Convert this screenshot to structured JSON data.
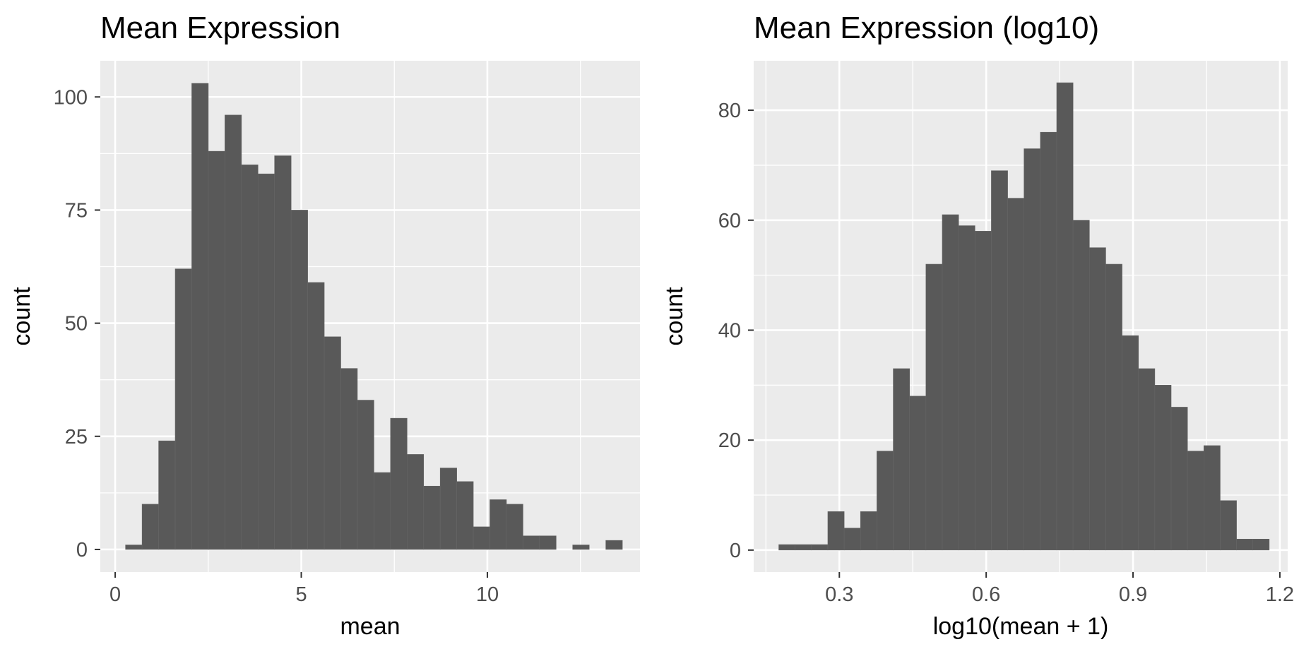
{
  "chart_data": [
    {
      "type": "bar",
      "title": "Mean Expression",
      "xlabel": "mean",
      "ylabel": "count",
      "xlim": [
        -0.4,
        14.1
      ],
      "ylim": [
        -5,
        108
      ],
      "x_ticks": [
        0,
        5,
        10
      ],
      "y_ticks": [
        0,
        25,
        50,
        75,
        100
      ],
      "grid": true,
      "bin_width": 0.445,
      "bins": [
        {
          "x": 0.5,
          "count": 1
        },
        {
          "x": 0.945,
          "count": 10
        },
        {
          "x": 1.39,
          "count": 24
        },
        {
          "x": 1.835,
          "count": 62
        },
        {
          "x": 2.28,
          "count": 103
        },
        {
          "x": 2.725,
          "count": 88
        },
        {
          "x": 3.17,
          "count": 96
        },
        {
          "x": 3.615,
          "count": 85
        },
        {
          "x": 4.06,
          "count": 83
        },
        {
          "x": 4.505,
          "count": 87
        },
        {
          "x": 4.95,
          "count": 75
        },
        {
          "x": 5.395,
          "count": 59
        },
        {
          "x": 5.84,
          "count": 47
        },
        {
          "x": 6.285,
          "count": 40
        },
        {
          "x": 6.73,
          "count": 33
        },
        {
          "x": 7.175,
          "count": 17
        },
        {
          "x": 7.62,
          "count": 29
        },
        {
          "x": 8.065,
          "count": 21
        },
        {
          "x": 8.51,
          "count": 14
        },
        {
          "x": 8.955,
          "count": 18
        },
        {
          "x": 9.4,
          "count": 15
        },
        {
          "x": 9.845,
          "count": 5
        },
        {
          "x": 10.29,
          "count": 11
        },
        {
          "x": 10.735,
          "count": 10
        },
        {
          "x": 11.18,
          "count": 3
        },
        {
          "x": 11.625,
          "count": 3
        },
        {
          "x": 12.07,
          "count": 0
        },
        {
          "x": 12.515,
          "count": 1
        },
        {
          "x": 12.96,
          "count": 0
        },
        {
          "x": 13.405,
          "count": 2
        }
      ]
    },
    {
      "type": "bar",
      "title": "Mean Expression (log10)",
      "xlabel": "log10(mean + 1)",
      "ylabel": "count",
      "xlim": [
        0.125,
        1.216
      ],
      "ylim": [
        -4,
        89
      ],
      "x_ticks": [
        0.3,
        0.6,
        0.9,
        1.2
      ],
      "y_ticks": [
        0,
        20,
        40,
        60,
        80
      ],
      "grid": true,
      "bin_width": 0.0334,
      "bins": [
        {
          "x": 0.193,
          "count": 1
        },
        {
          "x": 0.2264,
          "count": 1
        },
        {
          "x": 0.2598,
          "count": 1
        },
        {
          "x": 0.2932,
          "count": 7
        },
        {
          "x": 0.3266,
          "count": 4
        },
        {
          "x": 0.36,
          "count": 7
        },
        {
          "x": 0.3934,
          "count": 18
        },
        {
          "x": 0.4268,
          "count": 33
        },
        {
          "x": 0.4602,
          "count": 28
        },
        {
          "x": 0.4936,
          "count": 52
        },
        {
          "x": 0.527,
          "count": 61
        },
        {
          "x": 0.5604,
          "count": 59
        },
        {
          "x": 0.5938,
          "count": 58
        },
        {
          "x": 0.6272,
          "count": 69
        },
        {
          "x": 0.6606,
          "count": 64
        },
        {
          "x": 0.694,
          "count": 73
        },
        {
          "x": 0.7274,
          "count": 76
        },
        {
          "x": 0.7608,
          "count": 85
        },
        {
          "x": 0.7942,
          "count": 60
        },
        {
          "x": 0.8276,
          "count": 55
        },
        {
          "x": 0.861,
          "count": 52
        },
        {
          "x": 0.8944,
          "count": 39
        },
        {
          "x": 0.9278,
          "count": 33
        },
        {
          "x": 0.9612,
          "count": 30
        },
        {
          "x": 0.9946,
          "count": 26
        },
        {
          "x": 1.028,
          "count": 18
        },
        {
          "x": 1.0614,
          "count": 19
        },
        {
          "x": 1.0948,
          "count": 9
        },
        {
          "x": 1.1282,
          "count": 2
        },
        {
          "x": 1.1616,
          "count": 2
        }
      ]
    }
  ],
  "colors": {
    "bar_fill": "#595959",
    "bar_outline": "#666666",
    "panel_background": "#ebebeb",
    "gridline": "#ffffff",
    "tick_label": "#4d4d4d",
    "title_text": "#000000"
  }
}
